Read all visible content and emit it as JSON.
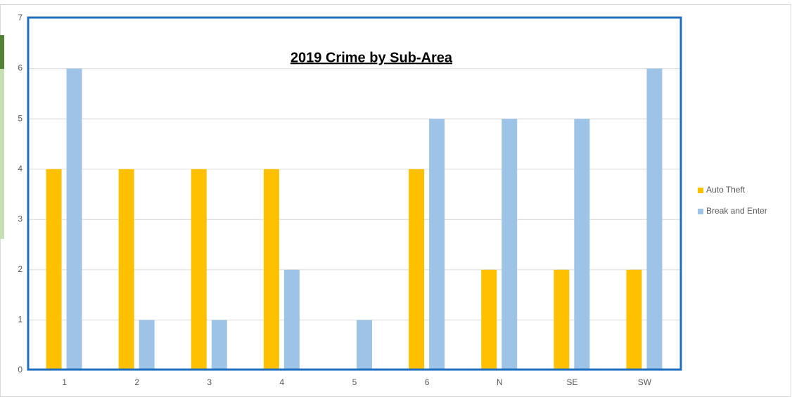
{
  "chart_data": {
    "type": "bar",
    "title": "2019 Crime by Sub-Area",
    "categories": [
      "1",
      "2",
      "3",
      "4",
      "5",
      "6",
      "N",
      "SE",
      "SW"
    ],
    "series": [
      {
        "name": "Auto Theft",
        "color": "#ffc000",
        "values": [
          4,
          4,
          4,
          4,
          0,
          4,
          2,
          2,
          2
        ]
      },
      {
        "name": "Break and Enter",
        "color": "#9dc3e6",
        "values": [
          6,
          1,
          1,
          2,
          1,
          5,
          5,
          5,
          6
        ]
      }
    ],
    "ylim": [
      0,
      7
    ],
    "yticks": [
      0,
      1,
      2,
      3,
      4,
      5,
      6,
      7
    ],
    "grid": true,
    "legend": "right"
  }
}
